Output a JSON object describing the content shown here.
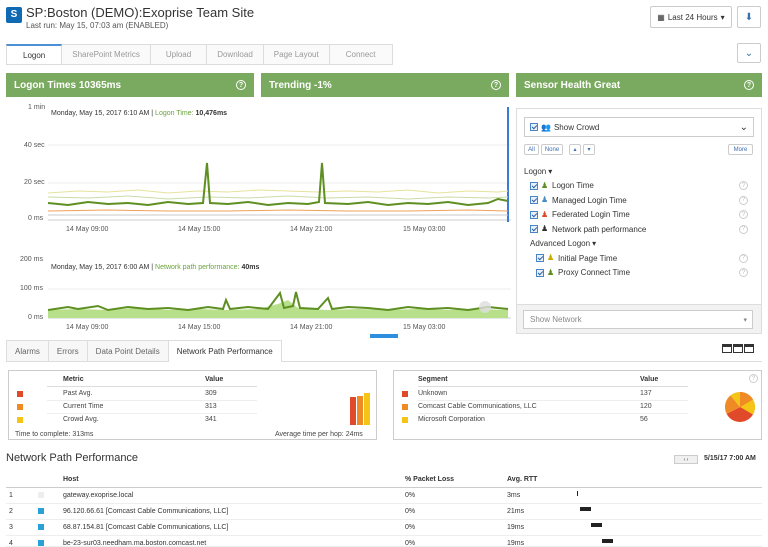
{
  "header": {
    "logo": "S",
    "title": "SP:Boston (DEMO):Exoprise Team Site",
    "subtitle": "Last run: May 15, 07:03 am (ENABLED)",
    "range_label": "Last 24 Hours",
    "calendar_icon": "calendar-icon",
    "download_icon": "download-icon",
    "collapse_icon": "chevron-down-icon"
  },
  "tabs": [
    "Logon",
    "SharePoint Metrics",
    "Upload",
    "Download",
    "Page Layout",
    "Connect"
  ],
  "bars": {
    "logon": "Logon Times 10365ms",
    "trending": "Trending -1%",
    "sensor": "Sensor Health Great"
  },
  "chart1": {
    "tooltip_date": "Monday, May 15, 2017 6:10 AM |",
    "tooltip_series": "Logon Time:",
    "tooltip_value": "10,476ms",
    "y_ticks": [
      "1 min",
      "40 sec",
      "20 sec",
      "0 ms"
    ],
    "x_ticks": [
      "14 May 09:00",
      "14 May 15:00",
      "14 May 21:00",
      "15 May 03:00"
    ]
  },
  "chart2": {
    "tooltip_date": "Monday, May 15, 2017 6:00 AM |",
    "tooltip_series": "Network path performance:",
    "tooltip_value": "40ms",
    "y_ticks": [
      "200 ms",
      "100 ms",
      "0 ms"
    ],
    "x_ticks": [
      "14 May 09:00",
      "14 May 15:00",
      "14 May 21:00",
      "15 May 03:00"
    ]
  },
  "sidebar": {
    "crowd_label": "Show Crowd",
    "all": "All",
    "none": "None",
    "more": "More",
    "group1": "Logon",
    "items1": [
      "Logon Time",
      "Managed Login Time",
      "Federated Login Time",
      "Network path performance"
    ],
    "group2": "Advanced Logon",
    "items2": [
      "Initial Page Time",
      "Proxy Connect Time"
    ],
    "network_placeholder": "Show Network"
  },
  "bottom_tabs": [
    "Alarms",
    "Errors",
    "Data Point Details",
    "Network Path Performance"
  ],
  "metrics": {
    "h_metric": "Metric",
    "h_value": "Value",
    "rows": [
      {
        "name": "Past Avg.",
        "value": "309",
        "color": "#e04a2a"
      },
      {
        "name": "Current Time",
        "value": "313",
        "color": "#f08a24"
      },
      {
        "name": "Crowd Avg.",
        "value": "341",
        "color": "#f4c517"
      }
    ],
    "footer_left": "Time to complete: 313ms",
    "footer_right": "Average time per hop: 24ms"
  },
  "segments": {
    "h_segment": "Segment",
    "h_value": "Value",
    "rows": [
      {
        "name": "Unknown",
        "value": "137",
        "color": "#e04a2a"
      },
      {
        "name": "Comcast Cable Communications, LLC",
        "value": "120",
        "color": "#f08a24"
      },
      {
        "name": "Microsoft Corporation",
        "value": "56",
        "color": "#f4c517"
      }
    ]
  },
  "np": {
    "title": "Network Path Performance",
    "date": "5/15/17 7:00 AM",
    "h_host": "Host",
    "h_loss": "% Packet Loss",
    "h_rtt": "Avg. RTT",
    "rows": [
      {
        "n": "1",
        "host": "gateway.exoprise.local",
        "loss": "0%",
        "rtt": "3ms"
      },
      {
        "n": "2",
        "host": "96.120.66.61 [Comcast Cable Communications, LLC]",
        "loss": "0%",
        "rtt": "21ms"
      },
      {
        "n": "3",
        "host": "68.87.154.81 [Comcast Cable Communications, LLC]",
        "loss": "0%",
        "rtt": "19ms"
      },
      {
        "n": "4",
        "host": "be-23-sur03.needham.ma.boston.comcast.net",
        "loss": "0%",
        "rtt": "19ms"
      }
    ]
  }
}
